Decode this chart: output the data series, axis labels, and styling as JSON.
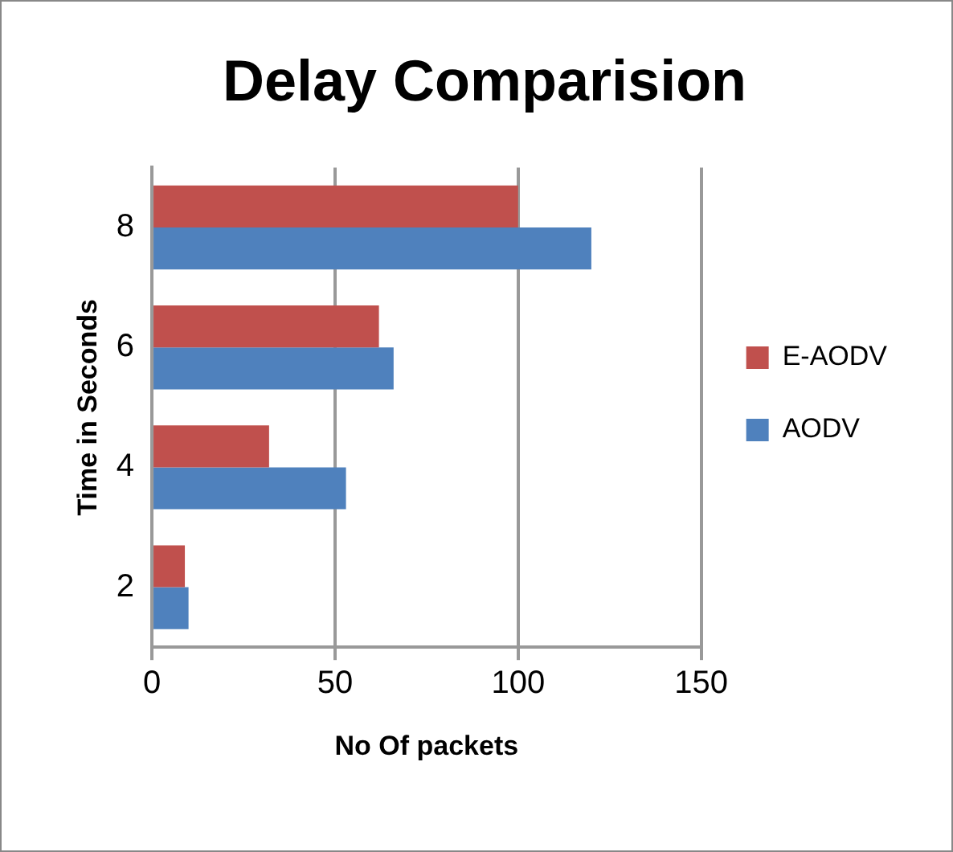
{
  "chart_data": {
    "type": "bar",
    "orientation": "horizontal",
    "title": "Delay Comparision",
    "xlabel": "No Of packets",
    "ylabel": "Time in Seconds",
    "categories": [
      "8",
      "6",
      "4",
      "2"
    ],
    "series": [
      {
        "name": "E-AODV",
        "color": "#c0504d",
        "values": [
          100,
          62,
          32,
          9
        ]
      },
      {
        "name": "AODV",
        "color": "#4f81bd",
        "values": [
          120,
          66,
          53,
          10
        ]
      }
    ],
    "xlim": [
      0,
      150
    ],
    "xticks": [
      0,
      50,
      100,
      150
    ],
    "grid": "x",
    "legend": "right"
  }
}
